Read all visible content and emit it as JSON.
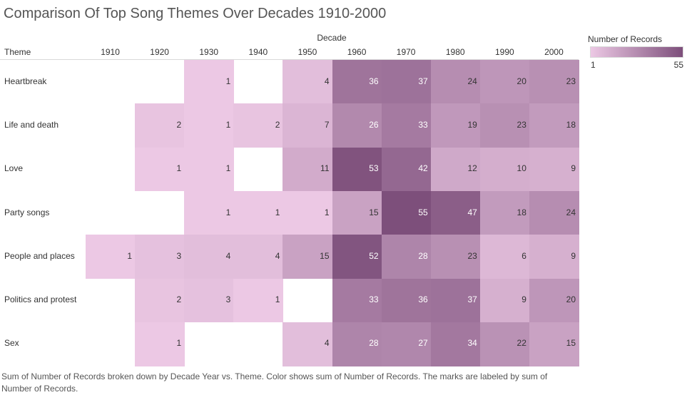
{
  "title": "Comparison Of Top Song Themes Over Decades 1910-2000",
  "column_group_label": "Decade",
  "row_header": "Theme",
  "legend": {
    "title": "Number of Records",
    "min_label": "1",
    "max_label": "55",
    "color_low": "#ecc8e4",
    "color_high": "#7d4f7b"
  },
  "caption": "Sum of Number of Records broken down by Decade Year vs. Theme.  Color shows sum of Number of Records.  The marks are labeled by sum of Number of Records.",
  "chart_data": {
    "type": "heatmap",
    "title": "Comparison Of Top Song Themes Over Decades 1910-2000",
    "xlabel": "Decade",
    "ylabel": "Theme",
    "x": [
      "1910",
      "1920",
      "1930",
      "1940",
      "1950",
      "1960",
      "1970",
      "1980",
      "1990",
      "2000"
    ],
    "y": [
      "Heartbreak",
      "Life and death",
      "Love",
      "Party songs",
      "People and places",
      "Politics and protest",
      "Sex"
    ],
    "values": [
      [
        null,
        null,
        1,
        null,
        4,
        36,
        37,
        24,
        20,
        23
      ],
      [
        null,
        2,
        1,
        2,
        7,
        26,
        33,
        19,
        23,
        18
      ],
      [
        null,
        1,
        1,
        null,
        11,
        53,
        42,
        12,
        10,
        9
      ],
      [
        null,
        null,
        1,
        1,
        1,
        15,
        55,
        47,
        18,
        24
      ],
      [
        1,
        3,
        4,
        4,
        15,
        52,
        28,
        23,
        6,
        9
      ],
      [
        null,
        2,
        3,
        1,
        null,
        33,
        36,
        37,
        9,
        20
      ],
      [
        null,
        1,
        null,
        null,
        4,
        28,
        27,
        34,
        22,
        15
      ]
    ],
    "color_range": [
      1,
      55
    ],
    "color_legend": "Number of Records"
  }
}
